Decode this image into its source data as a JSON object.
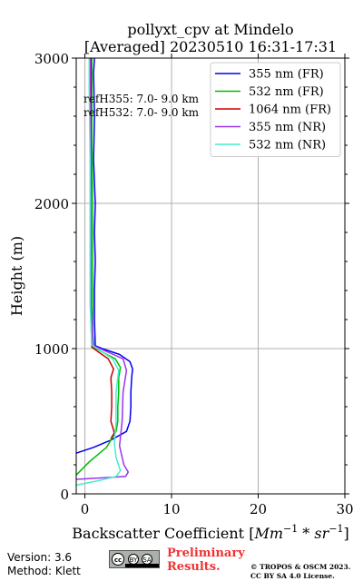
{
  "chart_data": {
    "type": "line",
    "title": "pollyxt_cpv at Mindelo",
    "subtitle": "[Averaged] 20230510 16:31-17:31",
    "xlabel_prefix": "Backscatter Coefficient [",
    "xlabel_unit": "Mm",
    "xlabel_unit_exp": "−1",
    "xlabel_mid": " * ",
    "xlabel_unit2": "sr",
    "xlabel_unit2_exp": "−1",
    "xlabel_suffix": "]",
    "ylabel": "Height (m)",
    "xlim": [
      -1,
      30
    ],
    "ylim": [
      0,
      3000
    ],
    "xticks": [
      "0",
      "10",
      "20",
      "30"
    ],
    "xtick_values": [
      0,
      10,
      20,
      30
    ],
    "yticks": [
      "0",
      "1000",
      "2000",
      "3000"
    ],
    "ytick_values": [
      0,
      1000,
      2000,
      3000
    ],
    "grid": true,
    "legend_position": "top-right",
    "annotations": [
      "refH355:  7.0- 9.0 km",
      "refH532:  7.0- 9.0 km"
    ],
    "series": [
      {
        "name": "355 nm (FR)",
        "color": "#0000ee",
        "x": [
          -1.0,
          1.0,
          3.0,
          4.8,
          5.2,
          5.3,
          5.3,
          5.4,
          5.5,
          5.2,
          4.0,
          2.0,
          1.2,
          1.1,
          1.1,
          1.2,
          1.1,
          1.2,
          1.0,
          1.1,
          1.0,
          1.1
        ],
        "y": [
          280,
          320,
          370,
          430,
          500,
          600,
          700,
          800,
          860,
          910,
          960,
          1000,
          1020,
          1200,
          1400,
          1600,
          1800,
          2000,
          2300,
          2600,
          2900,
          3000
        ]
      },
      {
        "name": "532 nm (FR)",
        "color": "#00bb00",
        "x": [
          -1.0,
          0.5,
          2.5,
          3.6,
          3.8,
          3.8,
          3.9,
          3.9,
          4.1,
          3.5,
          2.2,
          1.0,
          0.9,
          0.9,
          0.9,
          0.9,
          0.8,
          0.8,
          0.8
        ],
        "y": [
          130,
          220,
          320,
          430,
          500,
          600,
          700,
          800,
          870,
          930,
          970,
          1010,
          1100,
          1400,
          1700,
          2000,
          2400,
          2800,
          3000
        ]
      },
      {
        "name": "1064 nm (FR)",
        "color": "#cc0000",
        "x": [
          3.0,
          3.4,
          3.0,
          3.1,
          3.1,
          3.0,
          3.3,
          2.7,
          1.6,
          0.8,
          0.7,
          0.7,
          0.7,
          0.7
        ],
        "y": [
          380,
          420,
          500,
          600,
          700,
          800,
          860,
          930,
          975,
          1010,
          1200,
          1700,
          2300,
          3000
        ]
      },
      {
        "name": "355 nm (NR)",
        "color": "#9933ee",
        "x": [
          -1.0,
          2.0,
          4.7,
          5.0,
          4.5,
          4.0,
          4.3,
          4.4,
          4.8,
          4.4,
          2.5,
          1.0,
          0.7,
          0.7,
          0.7,
          0.6,
          0.6
        ],
        "y": [
          100,
          110,
          120,
          150,
          200,
          330,
          500,
          700,
          850,
          930,
          980,
          1020,
          1300,
          1800,
          2300,
          2800,
          3000
        ]
      },
      {
        "name": "532 nm (NR)",
        "color": "#44eecc",
        "x": [
          -1.0,
          1.5,
          3.6,
          4.1,
          3.6,
          3.4,
          3.6,
          3.6,
          3.9,
          3.2,
          1.8,
          0.8,
          0.6,
          0.6,
          0.6,
          0.5,
          0.5
        ],
        "y": [
          60,
          90,
          120,
          160,
          250,
          350,
          500,
          700,
          850,
          930,
          985,
          1025,
          1300,
          1800,
          2300,
          2800,
          3000
        ]
      }
    ]
  },
  "footer": {
    "version": "Version: 3.6",
    "method": "Method: Klett",
    "preliminary_line1": "Preliminary",
    "preliminary_line2": "Results.",
    "copyright_line1": "© TROPOS & OSCM 2023.",
    "copyright_line2": "CC BY SA 4.0 License.",
    "license_badge_cc": "cc",
    "license_badge_by": "BY",
    "license_badge_sa": "SA"
  }
}
